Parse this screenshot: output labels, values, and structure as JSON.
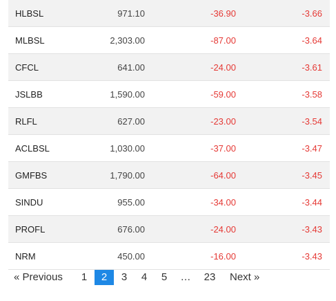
{
  "table": {
    "rows": [
      {
        "symbol": "HLBSL",
        "ltp": "971.10",
        "change": "-36.90",
        "percent": "-3.66"
      },
      {
        "symbol": "MLBSL",
        "ltp": "2,303.00",
        "change": "-87.00",
        "percent": "-3.64"
      },
      {
        "symbol": "CFCL",
        "ltp": "641.00",
        "change": "-24.00",
        "percent": "-3.61"
      },
      {
        "symbol": "JSLBB",
        "ltp": "1,590.00",
        "change": "-59.00",
        "percent": "-3.58"
      },
      {
        "symbol": "RLFL",
        "ltp": "627.00",
        "change": "-23.00",
        "percent": "-3.54"
      },
      {
        "symbol": "ACLBSL",
        "ltp": "1,030.00",
        "change": "-37.00",
        "percent": "-3.47"
      },
      {
        "symbol": "GMFBS",
        "ltp": "1,790.00",
        "change": "-64.00",
        "percent": "-3.45"
      },
      {
        "symbol": "SINDU",
        "ltp": "955.00",
        "change": "-34.00",
        "percent": "-3.44"
      },
      {
        "symbol": "PROFL",
        "ltp": "676.00",
        "change": "-24.00",
        "percent": "-3.43"
      },
      {
        "symbol": "NRM",
        "ltp": "450.00",
        "change": "-16.00",
        "percent": "-3.43"
      }
    ]
  },
  "pagination": {
    "previous": "«  Previous",
    "pages": [
      "1",
      "2",
      "3",
      "4",
      "5",
      "…",
      "23"
    ],
    "current": "2",
    "next": "Next  »"
  },
  "colors": {
    "negative": "#e53935",
    "active_page": "#1e88e5"
  }
}
